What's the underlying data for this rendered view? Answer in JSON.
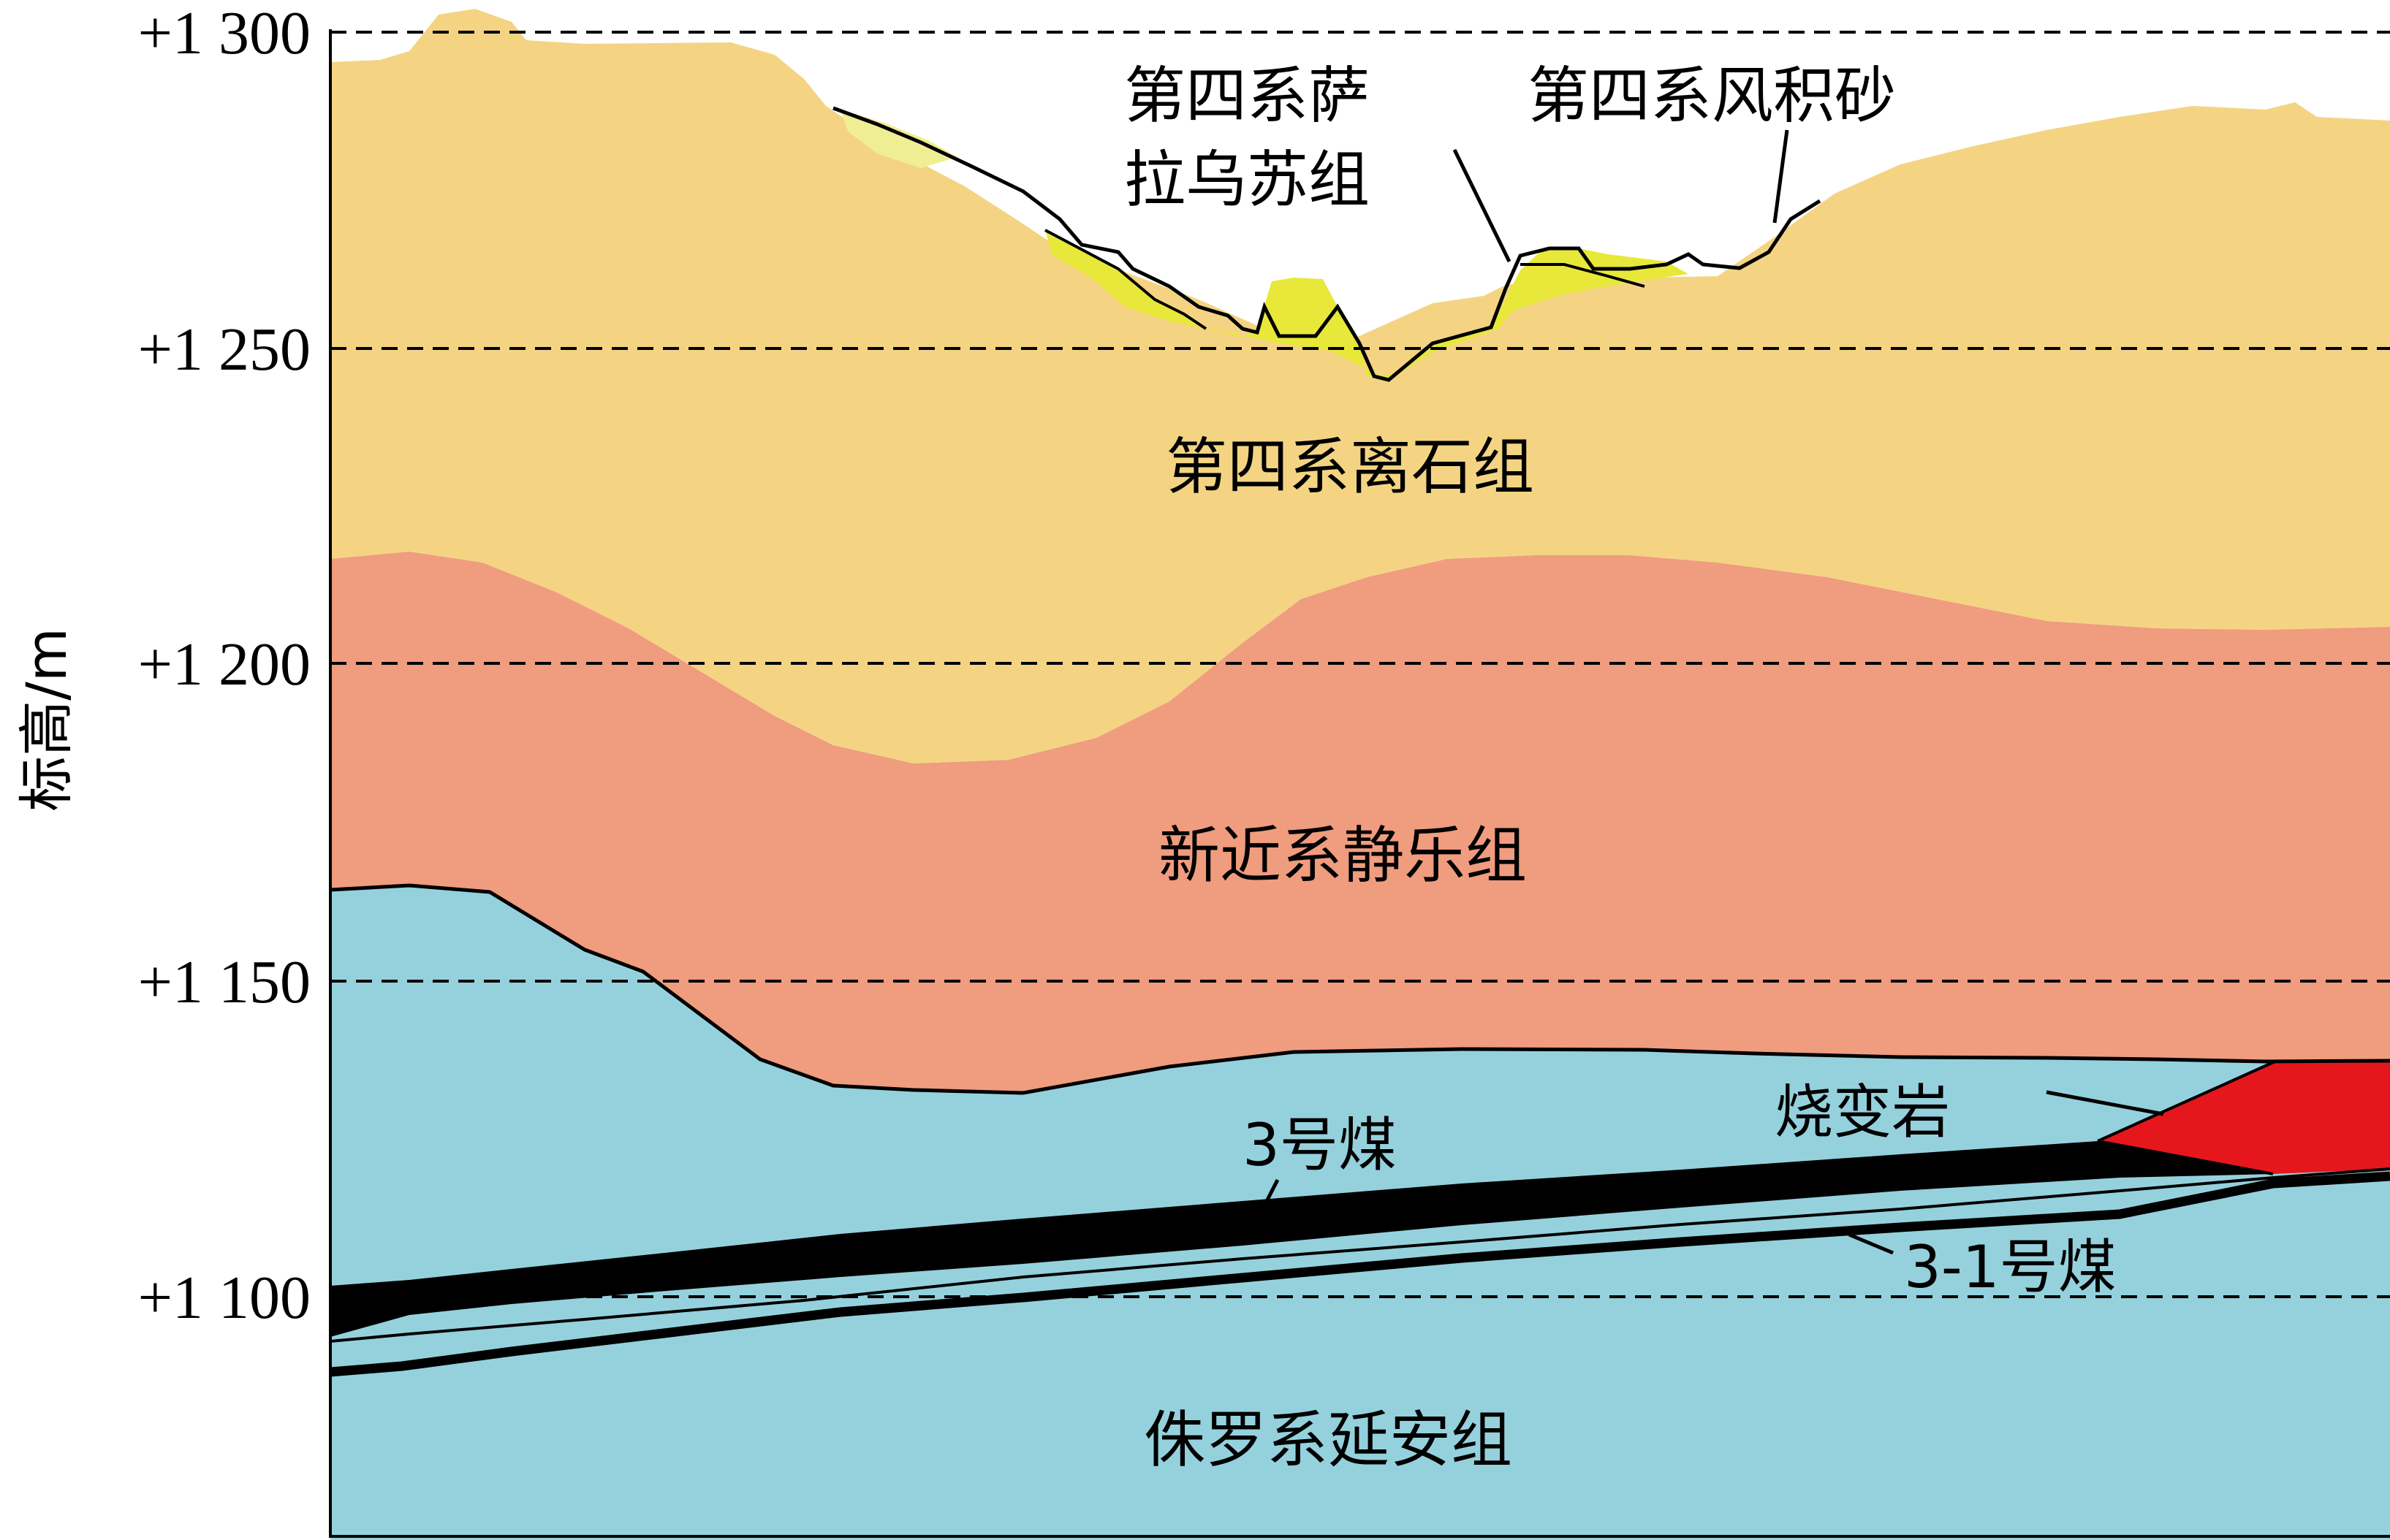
{
  "axis": {
    "label": "标高/m",
    "ticks": [
      "+1 300",
      "+1 250",
      "+1 200",
      "+1 150",
      "+1 100"
    ]
  },
  "units": {
    "quaternary_salawusu": [
      "第四系萨",
      "拉乌苏组"
    ],
    "quaternary_aeolian": "第四系风积砂",
    "quaternary_lishi": "第四系离石组",
    "neogene_jingle": "新近系静乐组",
    "jurassic_yanan": "侏罗系延安组"
  },
  "callouts": {
    "coal_3": "3号煤",
    "coal_3_1": "3-1号煤",
    "burnt_rock": "烧变岩"
  },
  "colors": {
    "lishi": "#f4d483",
    "salawusu": "#e8e83a",
    "aeolian": "#f0ee92",
    "jingle": "#f09c7e",
    "yanan": "#95d1dd",
    "coal": "#000000",
    "burnt_rock": "#e5171c",
    "gridline": "#000000"
  }
}
